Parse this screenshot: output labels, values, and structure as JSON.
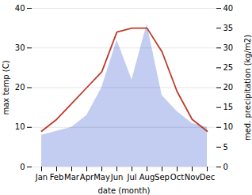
{
  "chart_data": {
    "type": "line",
    "categories": [
      "Jan",
      "Feb",
      "Mar",
      "Apr",
      "May",
      "Jun",
      "Jul",
      "Aug",
      "Sep",
      "Oct",
      "Nov",
      "Dec"
    ],
    "xlabel": "date (month)",
    "ylabel": "max temp (C)",
    "y2label": "med. precipitation (kg/m2)",
    "ylim": [
      0,
      40
    ],
    "yticks": [
      0,
      10,
      20,
      30,
      40
    ],
    "y2lim": [
      0,
      40
    ],
    "y2ticks": [
      0,
      5,
      10,
      15,
      20,
      25,
      30,
      35,
      40
    ],
    "grid": true,
    "series": [
      {
        "type": "area",
        "axis": "y2",
        "color": "#b8c4ee",
        "values": [
          8,
          9,
          10,
          13,
          20,
          32,
          22,
          36,
          18,
          14,
          11,
          10
        ]
      },
      {
        "type": "line",
        "color": "#c0392b",
        "values": [
          9,
          12,
          16,
          20,
          24,
          34,
          35,
          35,
          29,
          19,
          12,
          9
        ]
      }
    ]
  }
}
